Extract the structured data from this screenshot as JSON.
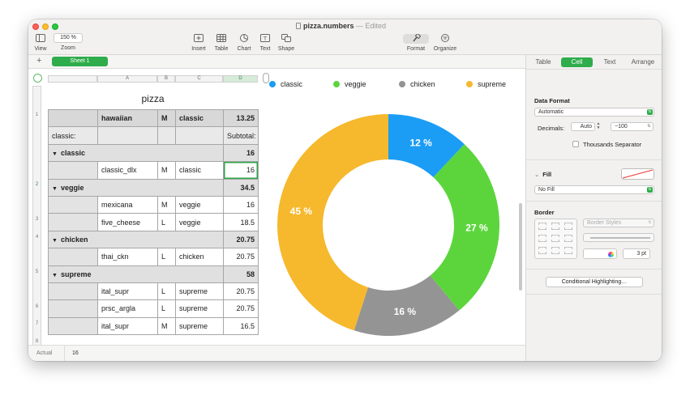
{
  "window": {
    "title": "pizza.numbers",
    "edited_label": "— Edited"
  },
  "toolbar": {
    "view_label": "View",
    "zoom_value": "150 %",
    "zoom_label": "Zoom",
    "insert_label": "Insert",
    "table_label": "Table",
    "chart_label": "Chart",
    "text_label": "Text",
    "shape_label": "Shape",
    "format_label": "Format",
    "organize_label": "Organize"
  },
  "sheets": {
    "add_label": "+",
    "active_sheet": "Sheet 1"
  },
  "columns": [
    "A",
    "B",
    "C",
    "D"
  ],
  "rows": [
    "1",
    "",
    "",
    "2",
    "",
    "3",
    "4",
    "",
    "5",
    "",
    "6",
    "7",
    "8"
  ],
  "table": {
    "title": "pizza",
    "header": [
      "",
      "hawaiian",
      "M",
      "classic",
      "13.25"
    ],
    "subtotal_row": [
      "classic:",
      "",
      "",
      "",
      "Subtotal:"
    ],
    "groups": [
      {
        "name": "classic",
        "subtotal": "16",
        "rows": [
          [
            "",
            "classic_dlx",
            "M",
            "classic",
            "16"
          ]
        ]
      },
      {
        "name": "veggie",
        "subtotal": "34.5",
        "rows": [
          [
            "",
            "mexicana",
            "M",
            "veggie",
            "16"
          ],
          [
            "",
            "five_cheese",
            "L",
            "veggie",
            "18.5"
          ]
        ]
      },
      {
        "name": "chicken",
        "subtotal": "20.75",
        "rows": [
          [
            "",
            "thai_ckn",
            "L",
            "chicken",
            "20.75"
          ]
        ]
      },
      {
        "name": "supreme",
        "subtotal": "58",
        "rows": [
          [
            "",
            "ital_supr",
            "L",
            "supreme",
            "20.75"
          ],
          [
            "",
            "prsc_argla",
            "L",
            "supreme",
            "20.75"
          ],
          [
            "",
            "ital_supr",
            "M",
            "supreme",
            "16.5"
          ]
        ]
      }
    ]
  },
  "chart_data": {
    "type": "pie",
    "donut": true,
    "categories": [
      "classic",
      "veggie",
      "chicken",
      "supreme"
    ],
    "values": [
      12,
      27,
      16,
      45
    ],
    "value_labels": [
      "12 %",
      "27 %",
      "16 %",
      "45 %"
    ],
    "colors": [
      "#1b9cf5",
      "#5cd53d",
      "#949494",
      "#f6b82c"
    ],
    "legend_position": "top"
  },
  "status": {
    "label": "Actual",
    "value": "16"
  },
  "inspector": {
    "tabs": [
      "Table",
      "Cell",
      "Text",
      "Arrange"
    ],
    "active_tab": "Cell",
    "data_format_label": "Data Format",
    "data_format_value": "Automatic",
    "decimals_label": "Decimals:",
    "decimals_value": "Auto",
    "negative_value": "−100",
    "thousands_label": "Thousands Separator",
    "fill_label": "Fill",
    "fill_value": "No Fill",
    "border_label": "Border",
    "border_styles_value": "Border Styles",
    "border_width_value": "3 pt",
    "conditional_label": "Conditional Highlighting…"
  }
}
